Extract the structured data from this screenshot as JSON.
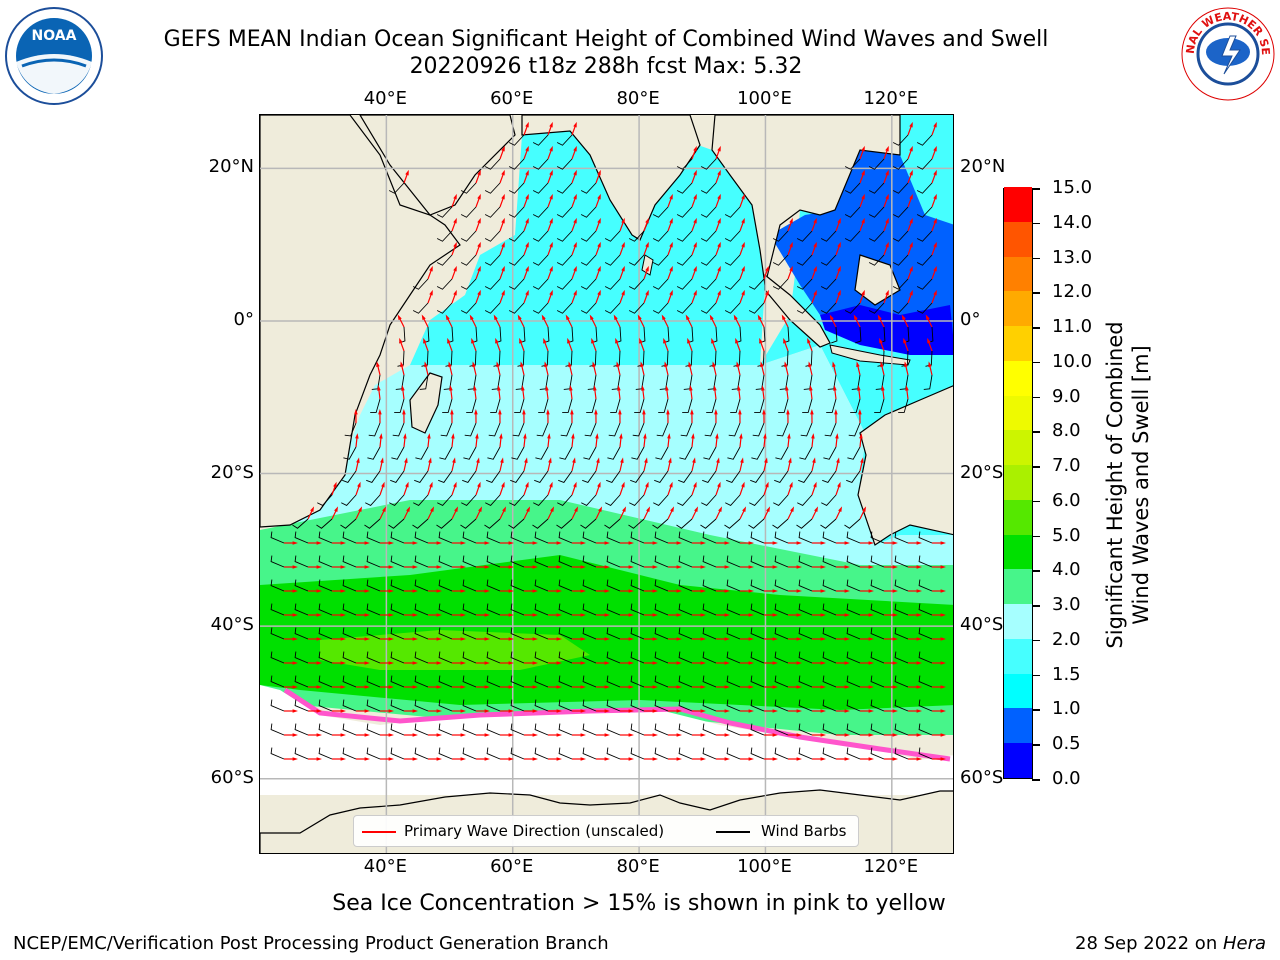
{
  "title": {
    "line1": "GEFS MEAN Indian Ocean Significant Height of Combined Wind Waves and Swell",
    "line2": "20220926 t18z 288h fcst   Max: 5.32"
  },
  "logos": {
    "left": "noaa-logo",
    "left_text": "NOAA",
    "right": "nws-logo",
    "right_text": "NATIONAL WEATHER SERVICE"
  },
  "map": {
    "region": "Indian Ocean",
    "projection": "plate-carree",
    "lon_range": [
      20,
      130
    ],
    "lat_range": [
      -70,
      27
    ],
    "land_color": "#efecdb",
    "grid_color": "#b8b8b8",
    "lon_labels": [
      "40°E",
      "60°E",
      "80°E",
      "100°E",
      "120°E"
    ],
    "lat_labels": [
      "20°N",
      "0°",
      "20°S",
      "40°S",
      "60°S"
    ],
    "lon_values": [
      40,
      60,
      80,
      100,
      120
    ],
    "lat_values": [
      20,
      0,
      -20,
      -40,
      -60
    ]
  },
  "colorbar": {
    "label_line1": "Significant Height of Combined",
    "label_line2": "Wind Waves and Swell [m]",
    "ticks": [
      "0.0",
      "0.5",
      "1.0",
      "1.5",
      "2.0",
      "3.0",
      "4.0",
      "5.0",
      "6.0",
      "7.0",
      "8.0",
      "9.0",
      "10.0",
      "11.0",
      "12.0",
      "13.0",
      "14.0",
      "15.0"
    ],
    "colors": [
      "#0000ff",
      "#0061ff",
      "#00ffff",
      "#46ffff",
      "#a6ffff",
      "#47f58a",
      "#00e000",
      "#55e800",
      "#aaf000",
      "#ccf500",
      "#eefa00",
      "#ffff00",
      "#ffd000",
      "#ffaa00",
      "#ff8000",
      "#ff5500",
      "#ff0000"
    ]
  },
  "legend": {
    "wave_label": "Primary Wave Direction (unscaled)",
    "wave_color": "#ff0000",
    "barb_label": "Wind Barbs",
    "barb_color": "#000000"
  },
  "ice_note": "Sea Ice Concentration > 15% is shown in pink to yellow",
  "footer": {
    "left": "NCEP/EMC/Verification Post Processing Product Generation Branch",
    "right_prefix": "28 Sep 2022 on ",
    "right_host": "Hera"
  }
}
